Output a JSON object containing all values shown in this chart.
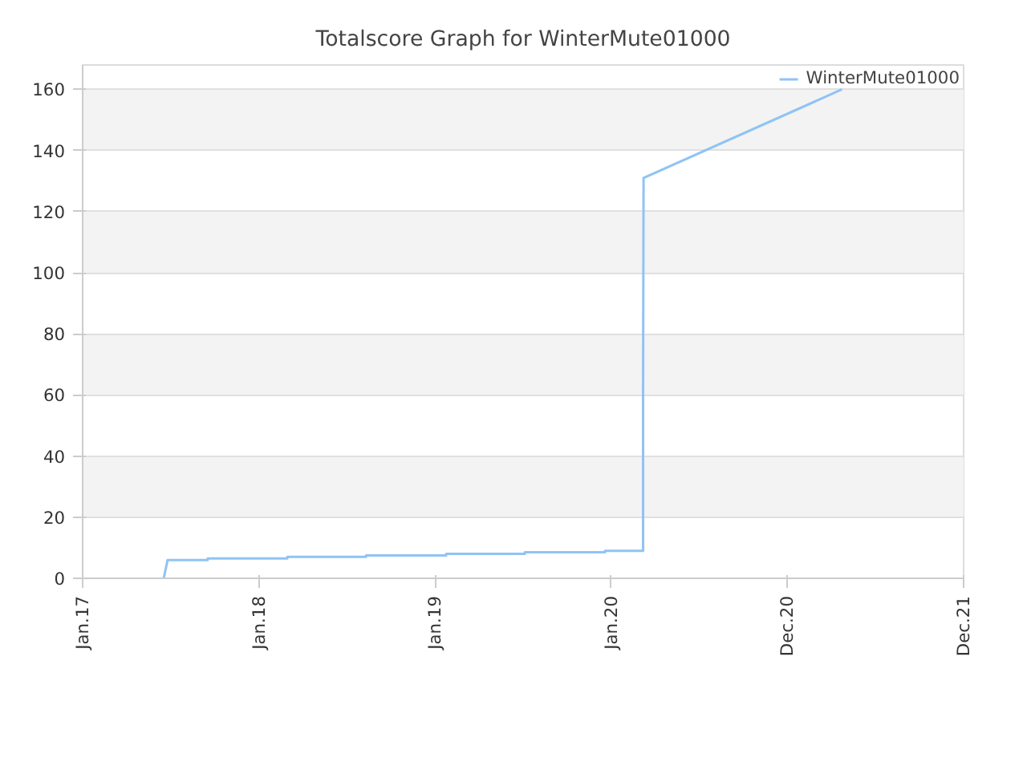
{
  "chart_data": {
    "type": "line",
    "title": "Totalscore Graph for WinterMute01000",
    "series": [
      {
        "name": "WinterMute01000",
        "color": "#90c3f5",
        "x": [
          "2017-06-18",
          "2017-06-26",
          "2017-09-17",
          "2017-09-17",
          "2018-03-01",
          "2018-03-01",
          "2018-08-11",
          "2018-08-11",
          "2019-01-24",
          "2019-01-24",
          "2019-07-06",
          "2019-07-06",
          "2019-12-19",
          "2019-12-19",
          "2020-03-07",
          "2020-03-07",
          "2020-03-08",
          "2021-04-23"
        ],
        "values": [
          0,
          6,
          6,
          6.5,
          6.5,
          7,
          7,
          7.5,
          7.5,
          8,
          8,
          8.5,
          8.5,
          9,
          9,
          62,
          131,
          160
        ]
      }
    ],
    "xlim": [
      "2017-01-01",
      "2021-12-31"
    ],
    "xticks": [
      {
        "value": "2017-01-01",
        "label": "Jan.17"
      },
      {
        "value": "2018-01-01",
        "label": "Jan.18"
      },
      {
        "value": "2019-01-01",
        "label": "Jan.19"
      },
      {
        "value": "2020-01-01",
        "label": "Jan.20"
      },
      {
        "value": "2020-12-31",
        "label": "Dec.20"
      },
      {
        "value": "2021-12-31",
        "label": "Dec.21"
      }
    ],
    "ylim": [
      0,
      168
    ],
    "yticks": [
      0,
      20,
      40,
      60,
      80,
      100,
      120,
      140,
      160
    ],
    "grid": "y",
    "legend": "top right",
    "marker": "none",
    "line_style": "solid"
  }
}
